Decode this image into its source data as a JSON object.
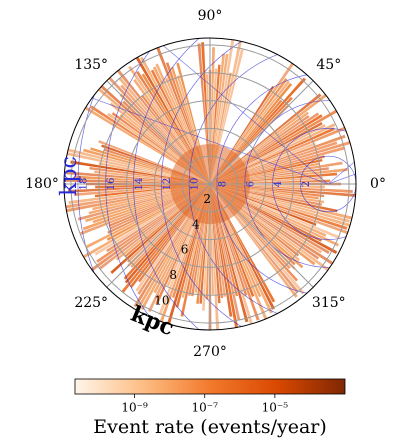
{
  "chart_data": {
    "type": "polar-heatmap",
    "theta_ticks": [
      {
        "value": 0,
        "label": "0°"
      },
      {
        "value": 45,
        "label": "45°"
      },
      {
        "value": 90,
        "label": "90°"
      },
      {
        "value": 135,
        "label": "135°"
      },
      {
        "value": 180,
        "label": "180°"
      },
      {
        "value": 225,
        "label": "225°"
      },
      {
        "value": 270,
        "label": "270°"
      },
      {
        "value": 315,
        "label": "315°"
      }
    ],
    "rlim": [
      0,
      10.5
    ],
    "rticks": [
      2,
      4,
      6,
      8,
      10
    ],
    "r_label": "kpc",
    "r2ticks": [
      2,
      4,
      6,
      8,
      10,
      12,
      14,
      16,
      18
    ],
    "r2_label": "kpc",
    "r2_color": "#2a2ad8",
    "colorbar": {
      "label": "Event rate (events/year)",
      "log": true,
      "lim": [
        2e-11,
        0.001
      ],
      "ticks": [
        {
          "value": 1e-09,
          "label": "10⁻⁹"
        },
        {
          "value": 1e-07,
          "label": "10⁻⁷"
        },
        {
          "value": 1e-05,
          "label": "10⁻⁵"
        }
      ],
      "colors": [
        "#fff5eb",
        "#fdbe85",
        "#f27a2c",
        "#d94801",
        "#7f2704"
      ]
    }
  }
}
